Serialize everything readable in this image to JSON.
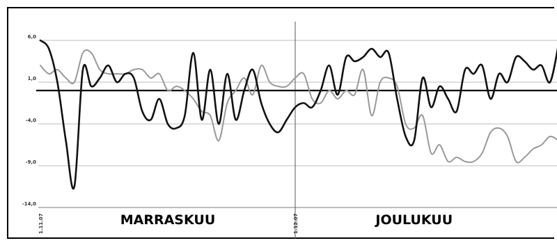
{
  "chart_data": {
    "type": "line",
    "title": "",
    "xlabel": "",
    "ylabel": "",
    "ylim": [
      -14.0,
      8.5
    ],
    "y_ticks": [
      "6,0",
      "1,0",
      "-4,0",
      "-9,0",
      "-14,0"
    ],
    "y_tick_values": [
      6,
      1,
      -4,
      -9,
      -14
    ],
    "x_tick_labels": [
      "1.11.07",
      "1.12.07"
    ],
    "x_tick_days": [
      1,
      31
    ],
    "month_labels": [
      {
        "label": "MARRASKUU",
        "day": 16
      },
      {
        "label": "JOULUKUU",
        "day": 45
      }
    ],
    "reference_line": 0.0,
    "grid": true,
    "legend": "none",
    "colors": {
      "series_dark": "#111111",
      "series_light": "#999999",
      "grid": "#bdbdbd",
      "divider": "#555555"
    },
    "series": [
      {
        "x": [
          1,
          2,
          3,
          4,
          5,
          6,
          7,
          8,
          9,
          10,
          11,
          12,
          13,
          14,
          15,
          16,
          17,
          18,
          19,
          20,
          21,
          22,
          23,
          24,
          25,
          26,
          27,
          28,
          29,
          30,
          31,
          32,
          33,
          34,
          35,
          36,
          37,
          38,
          39,
          40,
          41,
          42,
          43,
          44,
          45,
          46,
          47,
          48,
          49,
          50,
          51,
          52,
          53,
          54,
          55,
          56,
          57,
          58,
          59,
          60,
          61,
          62
        ],
        "values": [
          6.0,
          5.0,
          1.0,
          -6.0,
          -11.5,
          2.5,
          0.5,
          1.5,
          3.0,
          1.0,
          2.0,
          1.5,
          -2.5,
          -3.5,
          -1.0,
          -4.0,
          -4.5,
          -3.0,
          4.5,
          -3.5,
          2.5,
          -4.0,
          2.0,
          -3.5,
          0.0,
          2.5,
          -1.5,
          -4.0,
          -5.0,
          -3.5,
          -2.0,
          -1.5,
          -2.0,
          0.0,
          3.0,
          -0.5,
          4.0,
          3.5,
          4.0,
          5.0,
          4.0,
          4.5,
          -1.0,
          -5.5,
          -6.0,
          1.5,
          -2.0,
          0.5,
          -1.0,
          -2.5,
          2.5,
          2.0,
          3.0,
          -1.0,
          2.0,
          1.0,
          4.0,
          3.5,
          2.5,
          3.0,
          1.0,
          5.5
        ]
      },
      {
        "x": [
          1,
          2,
          3,
          4,
          5,
          6,
          7,
          8,
          9,
          10,
          11,
          12,
          13,
          14,
          15,
          16,
          17,
          18,
          19,
          20,
          21,
          22,
          23,
          24,
          25,
          26,
          27,
          28,
          29,
          30,
          31,
          32,
          33,
          34,
          35,
          36,
          37,
          38,
          39,
          40,
          41,
          42,
          43,
          44,
          45,
          46,
          47,
          48,
          49,
          50,
          51,
          52,
          53,
          54,
          55,
          56,
          57,
          58,
          59,
          60,
          61,
          62
        ],
        "values": [
          3.0,
          2.0,
          2.5,
          1.5,
          1.0,
          4.5,
          4.5,
          2.5,
          2.0,
          2.0,
          2.0,
          2.5,
          2.5,
          1.5,
          2.0,
          0.0,
          0.5,
          0.0,
          -1.0,
          -2.5,
          -3.0,
          -6.0,
          -1.5,
          0.0,
          1.5,
          -0.5,
          3.0,
          1.0,
          0.5,
          0.5,
          1.5,
          2.0,
          -1.0,
          -1.5,
          0.0,
          -1.0,
          0.0,
          -0.5,
          2.5,
          -3.0,
          1.0,
          1.5,
          0.5,
          -4.0,
          -4.5,
          -3.0,
          -7.5,
          -6.5,
          -8.5,
          -8.0,
          -8.5,
          -8.5,
          -7.5,
          -5.0,
          -4.5,
          -5.5,
          -8.5,
          -8.0,
          -7.0,
          -6.5,
          -5.5,
          -6.0
        ]
      }
    ]
  }
}
